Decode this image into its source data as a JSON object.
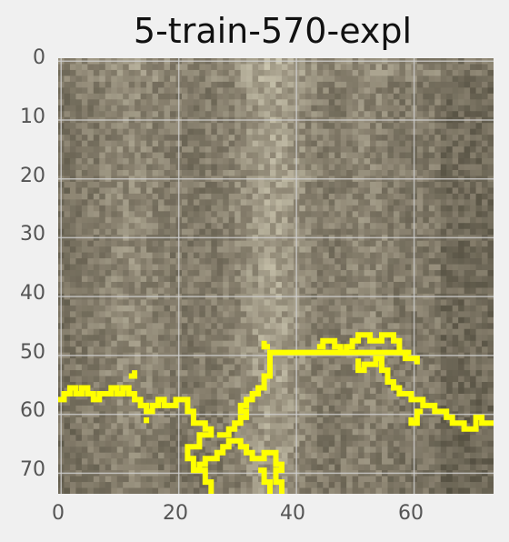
{
  "title": "5-train-570-expl",
  "axes": {
    "x_ticks": [
      "0",
      "20",
      "40",
      "60"
    ],
    "y_ticks": [
      "0",
      "10",
      "20",
      "30",
      "40",
      "50",
      "60",
      "70"
    ]
  },
  "image": {
    "grid_size": 74,
    "palette": {
      "dark": "#4a4638",
      "mid": "#8a8270",
      "light": "#d4cfb8",
      "outline": "#ffff00",
      "grid": "#cfcfcf"
    }
  },
  "chart_data": {
    "type": "heatmap",
    "title": "5-train-570-expl",
    "xlim": [
      0,
      74
    ],
    "ylim": [
      74,
      0
    ],
    "x_ticks": [
      0,
      20,
      40,
      60
    ],
    "y_ticks": [
      0,
      10,
      20,
      30,
      40,
      50,
      60,
      70
    ],
    "grid": true
  }
}
